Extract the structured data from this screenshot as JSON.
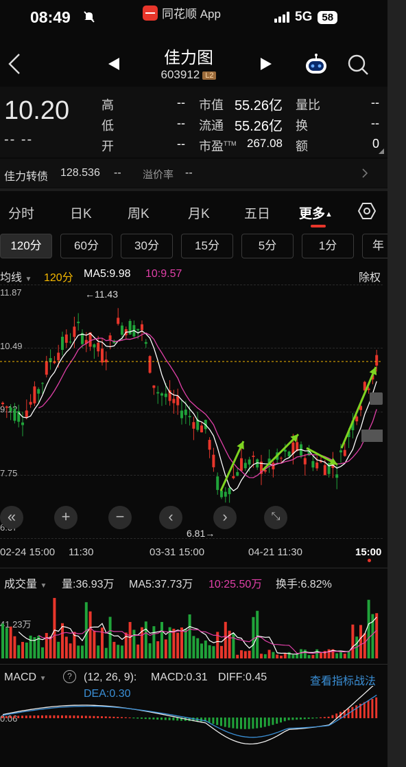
{
  "status_bar": {
    "time": "08:49",
    "app_label": "同花顺 App",
    "network": "5G",
    "battery": "58"
  },
  "header": {
    "stock_name": "佳力图",
    "stock_code": "603912",
    "level_badge": "L2"
  },
  "quote": {
    "price": "10.20",
    "change": "-- --",
    "rows": [
      {
        "l1": "高",
        "v1": "--",
        "l2": "市值",
        "v2": "55.26亿",
        "l3": "量比",
        "v3": "--"
      },
      {
        "l1": "低",
        "v1": "--",
        "l2": "流通",
        "v2": "55.26亿",
        "l3": "换",
        "v3": "--"
      },
      {
        "l1": "开",
        "v1": "--",
        "l2": "市盈",
        "l2sup": "TTM",
        "v2": "267.08",
        "l3": "额",
        "v3": "0"
      }
    ]
  },
  "convertible": {
    "name": "佳力转债",
    "price": "128.536",
    "change": "--",
    "premium_label": "溢价率",
    "premium_value": "--"
  },
  "tabs": [
    "分时",
    "日K",
    "周K",
    "月K",
    "五日",
    "更多"
  ],
  "periods": [
    "120分",
    "60分",
    "30分",
    "15分",
    "5分",
    "1分",
    "年"
  ],
  "ma_bar": {
    "type": "均线",
    "period": "120分",
    "ma5": "MA5:9.98",
    "ma10": "10:9.57",
    "adjust": "除权"
  },
  "chart_data": {
    "type": "candlestick",
    "y_labels": [
      "11.87",
      "10.49",
      "9.12",
      "7.75",
      "6.37"
    ],
    "x_labels": [
      "02-24 15:00",
      "11:30",
      "03-31 15:00",
      "04-21 11:30",
      "15:00"
    ],
    "annotations": [
      "←11.43",
      "6.81→"
    ],
    "high_marker": "11.43",
    "low_marker": "6.81",
    "current_price_line": 10.2,
    "ylim": [
      6.37,
      11.87
    ]
  },
  "volume_bar": {
    "name": "成交量",
    "vol": "量:36.93万",
    "ma5": "MA5:37.73万",
    "ma10": "10:25.50万",
    "turnover": "换手:6.82%",
    "y_label": "41.23万"
  },
  "macd_bar": {
    "name": "MACD",
    "help": "?",
    "params": "(12, 26, 9):",
    "macd": "MACD:0.31",
    "diff": "DIFF:0.45",
    "dea": "DEA:0.30",
    "link": "查看指标战法",
    "y_label": "0.06"
  },
  "colors": {
    "up": "#e8362b",
    "down": "#20a33a",
    "ma5": "#ffffff",
    "ma10": "#e040a8",
    "ma_period": "#f5b800",
    "dea": "#3a8fd6",
    "link": "#3a8fd6"
  }
}
